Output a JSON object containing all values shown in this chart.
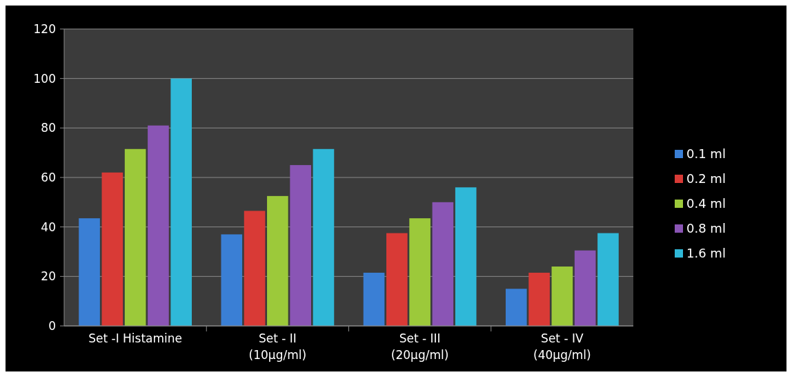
{
  "chart_data": {
    "type": "bar",
    "categories": [
      "Set -I Histamine",
      "Set - II\n(10µg/ml)",
      "Set - III\n(20µg/ml)",
      "Set - IV\n(40µg/ml)"
    ],
    "series": [
      {
        "name": "0.1 ml",
        "color": "#3a7fd5",
        "values": [
          43.5,
          37,
          21.5,
          15
        ]
      },
      {
        "name": "0.2 ml",
        "color": "#d93a36",
        "values": [
          62,
          46.5,
          37.5,
          21.5
        ]
      },
      {
        "name": "0.4 ml",
        "color": "#9cc93a",
        "values": [
          71.5,
          52.5,
          43.5,
          24
        ]
      },
      {
        "name": "0.8 ml",
        "color": "#8a55b5",
        "values": [
          81,
          65,
          50,
          30.5
        ]
      },
      {
        "name": "1.6 ml",
        "color": "#2fb8d8",
        "values": [
          100,
          71.5,
          56,
          37.5
        ]
      }
    ],
    "ylim": [
      0,
      120
    ],
    "yticks": [
      0,
      20,
      40,
      60,
      80,
      100,
      120
    ],
    "grid": "y",
    "legend": "right"
  }
}
